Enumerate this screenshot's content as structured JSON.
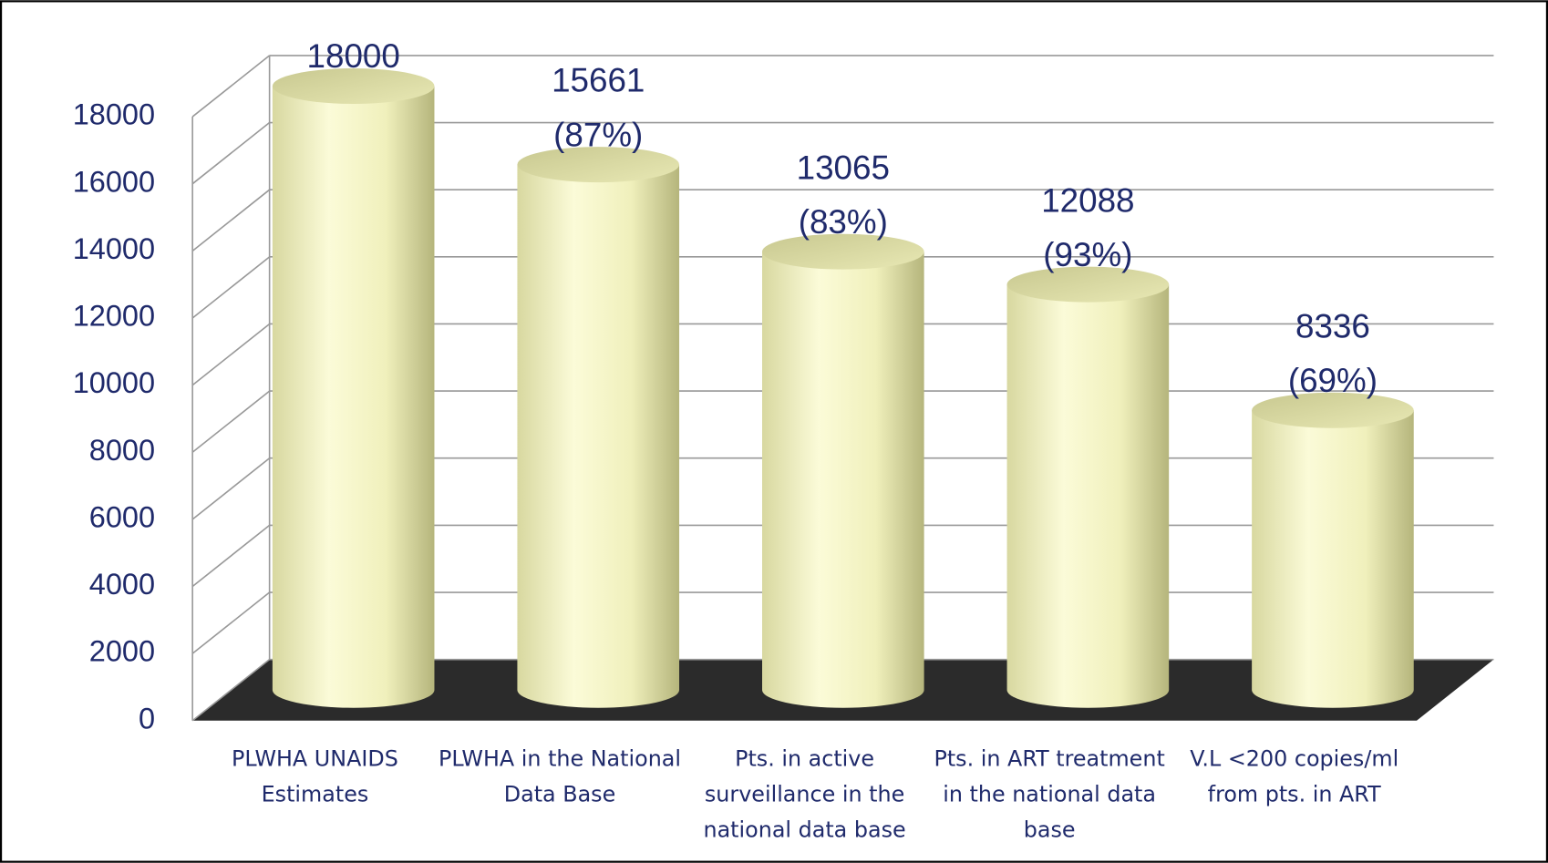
{
  "chart_data": {
    "type": "bar3d",
    "categories": [
      "PLWHA UNAIDS Estimates",
      "PLWHA in the National Data Base",
      "Pts. in active surveillance in the national data base",
      "Pts. in ART treatment in the national data base",
      "V.L <200 copies/ml from pts. in ART"
    ],
    "values": [
      18000,
      15661,
      13065,
      12088,
      8336
    ],
    "value_labels": [
      "18000",
      "15661 (87%)",
      "13065 (83%)",
      "12088 (93%)",
      "8336 (69%)"
    ],
    "color": "#f4f4c4",
    "ylim": [
      0,
      18000
    ],
    "yticks": [
      0,
      2000,
      4000,
      6000,
      8000,
      10000,
      12000,
      14000,
      16000,
      18000
    ],
    "grid": true
  }
}
